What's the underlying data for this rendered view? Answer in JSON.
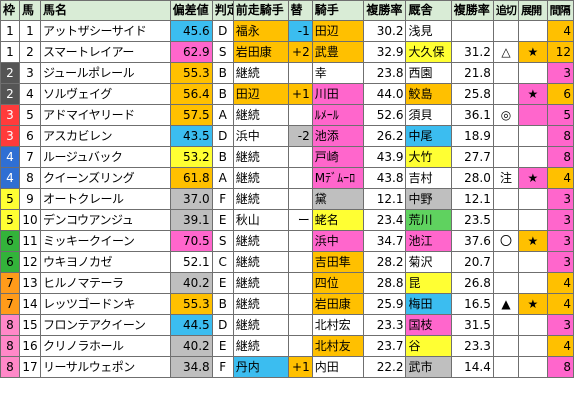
{
  "headers": [
    "枠",
    "馬",
    "馬名",
    "偏差値",
    "判定",
    "前走騎手",
    "替",
    "騎手",
    "複勝率",
    "厩舎",
    "複勝率",
    "追切",
    "展開",
    "間隔"
  ],
  "frame_colors": {
    "1": {
      "bg": "#ffffff",
      "fg": "#000000"
    },
    "2": {
      "bg": "#555555",
      "fg": "#ffffff"
    },
    "3": {
      "bg": "#ff3b3b",
      "fg": "#ffffff"
    },
    "4": {
      "bg": "#2f6fd3",
      "fg": "#ffffff"
    },
    "5": {
      "bg": "#ffff33",
      "fg": "#000000"
    },
    "6": {
      "bg": "#33b33a",
      "fg": "#000000"
    },
    "7": {
      "bg": "#ff9b1a",
      "fg": "#000000"
    },
    "8": {
      "bg": "#ff88c8",
      "fg": "#000000"
    }
  },
  "rows": [
    {
      "waku": "1",
      "uma": "1",
      "name": "アットザシーサイド",
      "score": "45.6",
      "score_bg": "f-blue",
      "grade": "D",
      "prev_jockey": "福永",
      "prev_bg": "f-orange",
      "change": "-1",
      "change_bg": "f-blue",
      "jockey": "田辺",
      "jockey_bg": "f-orange",
      "j_rate": "30.2",
      "j_rate_bg": "",
      "stable": "浅見",
      "stable_bg": "",
      "s_rate": "",
      "oikiri": "",
      "tenkai": "",
      "tenkai_bg": "",
      "interval": "4",
      "interval_bg": "f-orange"
    },
    {
      "waku": "1",
      "uma": "2",
      "name": "スマートレイアー",
      "score": "62.9",
      "score_bg": "f-pink",
      "grade": "S",
      "prev_jockey": "岩田康",
      "prev_bg": "f-orange",
      "change": "+2",
      "change_bg": "f-orange",
      "jockey": "武豊",
      "jockey_bg": "f-orange",
      "j_rate": "32.9",
      "j_rate_bg": "",
      "stable": "大久保",
      "stable_bg": "f-yellow",
      "s_rate": "31.2",
      "oikiri": "△",
      "tenkai": "★",
      "tenkai_bg": "f-orange",
      "interval": "12",
      "interval_bg": "f-orange"
    },
    {
      "waku": "2",
      "uma": "3",
      "name": "ジュールポレール",
      "score": "55.3",
      "score_bg": "f-orange",
      "grade": "B",
      "prev_jockey": "継続",
      "prev_bg": "",
      "change": "",
      "change_bg": "",
      "jockey": "幸",
      "jockey_bg": "",
      "j_rate": "23.8",
      "j_rate_bg": "",
      "stable": "西園",
      "stable_bg": "",
      "s_rate": "21.8",
      "oikiri": "",
      "tenkai": "",
      "tenkai_bg": "",
      "interval": "3",
      "interval_bg": "f-pink"
    },
    {
      "waku": "2",
      "uma": "4",
      "name": "ソルヴェイグ",
      "score": "56.4",
      "score_bg": "f-orange",
      "grade": "B",
      "prev_jockey": "田辺",
      "prev_bg": "f-orange",
      "change": "+1",
      "change_bg": "f-orange",
      "jockey": "川田",
      "jockey_bg": "f-pink",
      "j_rate": "44.0",
      "j_rate_bg": "",
      "stable": "鮫島",
      "stable_bg": "f-orange",
      "s_rate": "25.8",
      "oikiri": "",
      "tenkai": "★",
      "tenkai_bg": "f-pink",
      "interval": "6",
      "interval_bg": "f-orange"
    },
    {
      "waku": "3",
      "uma": "5",
      "name": "アドマイヤリード",
      "score": "57.5",
      "score_bg": "f-orange",
      "grade": "A",
      "prev_jockey": "継続",
      "prev_bg": "",
      "change": "",
      "change_bg": "",
      "jockey": "ﾙﾒｰﾙ",
      "jockey_bg": "f-pink",
      "j_rate": "52.6",
      "j_rate_bg": "",
      "stable": "須貝",
      "stable_bg": "",
      "s_rate": "36.1",
      "oikiri": "◎",
      "tenkai": "",
      "tenkai_bg": "f-pink",
      "interval": "5",
      "interval_bg": "f-pink"
    },
    {
      "waku": "3",
      "uma": "6",
      "name": "アスカビレン",
      "score": "43.5",
      "score_bg": "f-blue",
      "grade": "D",
      "prev_jockey": "浜中",
      "prev_bg": "",
      "change": "-2",
      "change_bg": "f-gray",
      "jockey": "池添",
      "jockey_bg": "f-pink",
      "j_rate": "26.2",
      "j_rate_bg": "",
      "stable": "中尾",
      "stable_bg": "f-blue",
      "s_rate": "18.9",
      "oikiri": "",
      "tenkai": "",
      "tenkai_bg": "",
      "interval": "8",
      "interval_bg": "f-pink"
    },
    {
      "waku": "4",
      "uma": "7",
      "name": "ルージュバック",
      "score": "53.2",
      "score_bg": "f-yellow",
      "grade": "B",
      "prev_jockey": "継続",
      "prev_bg": "",
      "change": "",
      "change_bg": "",
      "jockey": "戸崎",
      "jockey_bg": "f-pink",
      "j_rate": "43.9",
      "j_rate_bg": "",
      "stable": "大竹",
      "stable_bg": "f-yellow",
      "s_rate": "27.7",
      "oikiri": "",
      "tenkai": "",
      "tenkai_bg": "",
      "interval": "8",
      "interval_bg": "f-pink"
    },
    {
      "waku": "4",
      "uma": "8",
      "name": "クイーンズリング",
      "score": "61.8",
      "score_bg": "f-orange",
      "grade": "A",
      "prev_jockey": "継続",
      "prev_bg": "",
      "change": "",
      "change_bg": "",
      "jockey": "Mﾃﾞﾑｰﾛ",
      "jockey_bg": "f-pink",
      "j_rate": "43.8",
      "j_rate_bg": "",
      "stable": "吉村",
      "stable_bg": "",
      "s_rate": "28.0",
      "oikiri": "注",
      "tenkai": "★",
      "tenkai_bg": "f-pink",
      "interval": "4",
      "interval_bg": "f-orange"
    },
    {
      "waku": "5",
      "uma": "9",
      "name": "オートクレール",
      "score": "37.0",
      "score_bg": "f-gray",
      "grade": "F",
      "prev_jockey": "継続",
      "prev_bg": "",
      "change": "",
      "change_bg": "",
      "jockey": "黛",
      "jockey_bg": "f-gray",
      "j_rate": "12.1",
      "j_rate_bg": "",
      "stable": "中野",
      "stable_bg": "f-gray",
      "s_rate": "12.1",
      "oikiri": "",
      "tenkai": "",
      "tenkai_bg": "",
      "interval": "3",
      "interval_bg": "f-pink"
    },
    {
      "waku": "5",
      "uma": "10",
      "name": "デンコウアンジュ",
      "score": "39.1",
      "score_bg": "f-gray",
      "grade": "E",
      "prev_jockey": "秋山",
      "prev_bg": "",
      "change": "ー",
      "change_bg": "",
      "jockey": "蛯名",
      "jockey_bg": "f-yellow",
      "j_rate": "23.4",
      "j_rate_bg": "",
      "stable": "荒川",
      "stable_bg": "f-green",
      "s_rate": "23.5",
      "oikiri": "",
      "tenkai": "",
      "tenkai_bg": "",
      "interval": "3",
      "interval_bg": "f-pink"
    },
    {
      "waku": "6",
      "uma": "11",
      "name": "ミッキークイーン",
      "score": "70.5",
      "score_bg": "f-pink",
      "grade": "S",
      "prev_jockey": "継続",
      "prev_bg": "",
      "change": "",
      "change_bg": "",
      "jockey": "浜中",
      "jockey_bg": "f-pink",
      "j_rate": "34.7",
      "j_rate_bg": "",
      "stable": "池江",
      "stable_bg": "f-pink",
      "s_rate": "37.6",
      "oikiri": "〇",
      "tenkai": "★",
      "tenkai_bg": "f-orange",
      "interval": "3",
      "interval_bg": "f-pink"
    },
    {
      "waku": "6",
      "uma": "12",
      "name": "ウキヨノカゼ",
      "score": "52.1",
      "score_bg": "",
      "grade": "C",
      "prev_jockey": "継続",
      "prev_bg": "",
      "change": "",
      "change_bg": "",
      "jockey": "吉田隼",
      "jockey_bg": "f-orange",
      "j_rate": "28.2",
      "j_rate_bg": "",
      "stable": "菊沢",
      "stable_bg": "",
      "s_rate": "20.7",
      "oikiri": "",
      "tenkai": "",
      "tenkai_bg": "",
      "interval": "3",
      "interval_bg": "f-pink"
    },
    {
      "waku": "7",
      "uma": "13",
      "name": "ヒルノマテーラ",
      "score": "40.2",
      "score_bg": "f-gray",
      "grade": "E",
      "prev_jockey": "継続",
      "prev_bg": "",
      "change": "",
      "change_bg": "",
      "jockey": "四位",
      "jockey_bg": "f-orange",
      "j_rate": "28.8",
      "j_rate_bg": "",
      "stable": "昆",
      "stable_bg": "f-yellow",
      "s_rate": "26.8",
      "oikiri": "",
      "tenkai": "",
      "tenkai_bg": "",
      "interval": "4",
      "interval_bg": "f-orange"
    },
    {
      "waku": "7",
      "uma": "14",
      "name": "レッツゴードンキ",
      "score": "55.3",
      "score_bg": "f-orange",
      "grade": "B",
      "prev_jockey": "継続",
      "prev_bg": "",
      "change": "",
      "change_bg": "",
      "jockey": "岩田康",
      "jockey_bg": "f-orange",
      "j_rate": "25.9",
      "j_rate_bg": "",
      "stable": "梅田",
      "stable_bg": "f-blue",
      "s_rate": "16.5",
      "oikiri": "▲",
      "tenkai": "★",
      "tenkai_bg": "f-orange",
      "interval": "4",
      "interval_bg": "f-orange"
    },
    {
      "waku": "8",
      "uma": "15",
      "name": "フロンテアクイーン",
      "score": "44.5",
      "score_bg": "f-blue",
      "grade": "D",
      "prev_jockey": "継続",
      "prev_bg": "",
      "change": "",
      "change_bg": "",
      "jockey": "北村宏",
      "jockey_bg": "",
      "j_rate": "23.3",
      "j_rate_bg": "",
      "stable": "国枝",
      "stable_bg": "f-pink",
      "s_rate": "31.5",
      "oikiri": "",
      "tenkai": "",
      "tenkai_bg": "",
      "interval": "3",
      "interval_bg": "f-pink"
    },
    {
      "waku": "8",
      "uma": "16",
      "name": "クリノラホール",
      "score": "40.2",
      "score_bg": "f-gray",
      "grade": "E",
      "prev_jockey": "継続",
      "prev_bg": "",
      "change": "",
      "change_bg": "",
      "jockey": "北村友",
      "jockey_bg": "f-orange",
      "j_rate": "23.7",
      "j_rate_bg": "",
      "stable": "谷",
      "stable_bg": "f-yellow",
      "s_rate": "23.3",
      "oikiri": "",
      "tenkai": "",
      "tenkai_bg": "",
      "interval": "4",
      "interval_bg": "f-orange"
    },
    {
      "waku": "8",
      "uma": "17",
      "name": "リーサルウェポン",
      "score": "34.8",
      "score_bg": "f-gray",
      "grade": "F",
      "prev_jockey": "丹内",
      "prev_bg": "f-blue",
      "change": "+1",
      "change_bg": "f-orange",
      "jockey": "内田",
      "jockey_bg": "",
      "j_rate": "22.2",
      "j_rate_bg": "",
      "stable": "武市",
      "stable_bg": "f-gray",
      "s_rate": "14.4",
      "oikiri": "",
      "tenkai": "",
      "tenkai_bg": "",
      "interval": "8",
      "interval_bg": "f-pink"
    }
  ]
}
